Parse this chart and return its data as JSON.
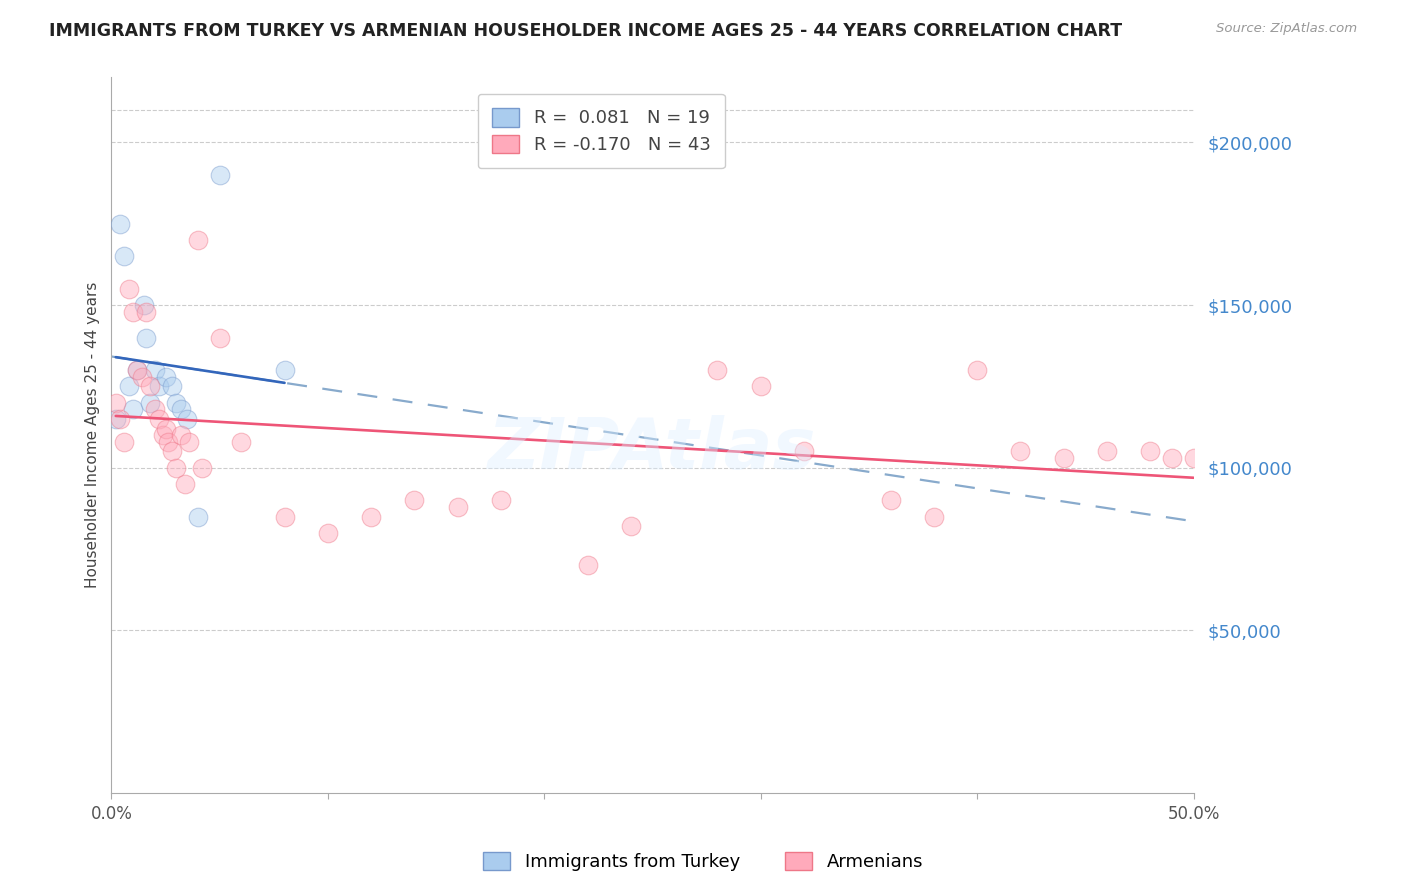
{
  "title": "IMMIGRANTS FROM TURKEY VS ARMENIAN HOUSEHOLDER INCOME AGES 25 - 44 YEARS CORRELATION CHART",
  "source": "Source: ZipAtlas.com",
  "ylabel": "Householder Income Ages 25 - 44 years",
  "xlim": [
    0.0,
    0.5
  ],
  "ylim": [
    0,
    220000
  ],
  "xticks": [
    0.0,
    0.1,
    0.2,
    0.3,
    0.4,
    0.5
  ],
  "xticklabels": [
    "0.0%",
    "",
    "",
    "",
    "",
    "50.0%"
  ],
  "yticks_right": [
    50000,
    100000,
    150000,
    200000
  ],
  "ytick_labels_right": [
    "$50,000",
    "$100,000",
    "$150,000",
    "$200,000"
  ],
  "grid_color": "#cccccc",
  "background_color": "#ffffff",
  "blue_fill_color": "#aaccee",
  "blue_edge_color": "#7799cc",
  "pink_fill_color": "#ffaabb",
  "pink_edge_color": "#ee7788",
  "blue_line_color": "#3366bb",
  "pink_line_color": "#ee5577",
  "blue_dashed_color": "#88aacc",
  "right_label_color": "#4488cc",
  "legend_R1": "R =  0.081",
  "legend_N1": "N = 19",
  "legend_R2": "R = -0.170",
  "legend_N2": "N = 43",
  "label_turkey": "Immigrants from Turkey",
  "label_armenian": "Armenians",
  "turkey_x": [
    0.002,
    0.004,
    0.006,
    0.008,
    0.01,
    0.012,
    0.015,
    0.016,
    0.018,
    0.02,
    0.022,
    0.025,
    0.028,
    0.03,
    0.032,
    0.035,
    0.04,
    0.05,
    0.08
  ],
  "turkey_y": [
    115000,
    175000,
    165000,
    125000,
    118000,
    130000,
    150000,
    140000,
    120000,
    130000,
    125000,
    128000,
    125000,
    120000,
    118000,
    115000,
    85000,
    190000,
    130000
  ],
  "armenian_x": [
    0.002,
    0.004,
    0.006,
    0.008,
    0.01,
    0.012,
    0.014,
    0.016,
    0.018,
    0.02,
    0.022,
    0.024,
    0.025,
    0.026,
    0.028,
    0.03,
    0.032,
    0.034,
    0.036,
    0.04,
    0.042,
    0.05,
    0.06,
    0.08,
    0.1,
    0.12,
    0.14,
    0.16,
    0.18,
    0.22,
    0.24,
    0.28,
    0.3,
    0.32,
    0.36,
    0.38,
    0.4,
    0.42,
    0.44,
    0.46,
    0.48,
    0.49,
    0.5
  ],
  "armenian_y": [
    120000,
    115000,
    108000,
    155000,
    148000,
    130000,
    128000,
    148000,
    125000,
    118000,
    115000,
    110000,
    112000,
    108000,
    105000,
    100000,
    110000,
    95000,
    108000,
    170000,
    100000,
    140000,
    108000,
    85000,
    80000,
    85000,
    90000,
    88000,
    90000,
    70000,
    82000,
    130000,
    125000,
    105000,
    90000,
    85000,
    130000,
    105000,
    103000,
    105000,
    105000,
    103000,
    103000
  ],
  "marker_size": 180,
  "marker_alpha": 0.45,
  "trend_linewidth": 1.6
}
